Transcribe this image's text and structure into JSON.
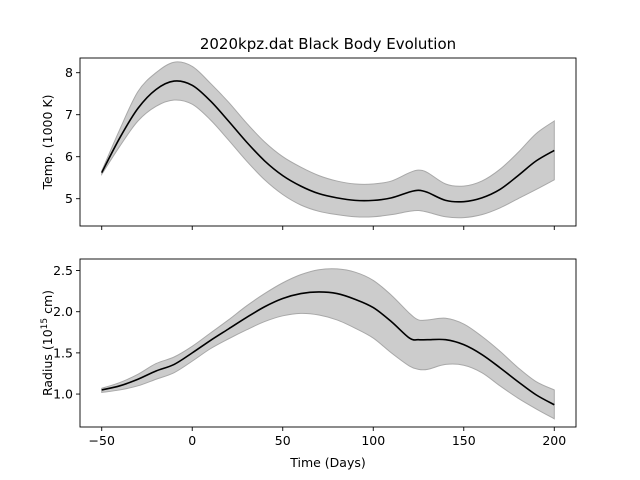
{
  "chart_data": [
    {
      "type": "line",
      "title": "2020kpz.dat Black Body Evolution",
      "xlabel": "",
      "ylabel": "Temp. (1000 K)",
      "xlim": [
        -62,
        212
      ],
      "ylim": [
        4.35,
        8.35
      ],
      "xticks": [
        -50,
        0,
        50,
        100,
        150,
        200
      ],
      "xtick_labels_shown": false,
      "yticks": [
        5,
        6,
        7,
        8
      ],
      "grid": false,
      "colors": {
        "line": "#000000",
        "band": "#cccccc",
        "band_edge": "#a8a8a8"
      },
      "series": [
        {
          "x": [
            -50,
            -40,
            -30,
            -20,
            -10,
            0,
            10,
            20,
            30,
            40,
            50,
            60,
            70,
            80,
            90,
            100,
            110,
            120,
            125,
            130,
            140,
            150,
            160,
            170,
            180,
            190,
            200
          ],
          "y": [
            5.62,
            6.45,
            7.15,
            7.6,
            7.8,
            7.7,
            7.33,
            6.85,
            6.35,
            5.9,
            5.55,
            5.3,
            5.12,
            5.02,
            4.96,
            4.96,
            5.02,
            5.16,
            5.2,
            5.15,
            4.96,
            4.93,
            5.02,
            5.22,
            5.55,
            5.9,
            6.15
          ],
          "lower": [
            5.58,
            6.25,
            6.85,
            7.2,
            7.35,
            7.25,
            6.88,
            6.4,
            5.9,
            5.45,
            5.1,
            4.85,
            4.7,
            4.62,
            4.57,
            4.57,
            4.62,
            4.7,
            4.72,
            4.68,
            4.57,
            4.55,
            4.62,
            4.78,
            5.0,
            5.22,
            5.45
          ],
          "upper": [
            5.66,
            6.65,
            7.55,
            8.0,
            8.25,
            8.15,
            7.75,
            7.3,
            6.8,
            6.35,
            6.0,
            5.75,
            5.55,
            5.42,
            5.35,
            5.35,
            5.42,
            5.62,
            5.68,
            5.62,
            5.35,
            5.3,
            5.42,
            5.7,
            6.1,
            6.55,
            6.85
          ]
        }
      ]
    },
    {
      "type": "line",
      "title": "",
      "xlabel": "Time (Days)",
      "ylabel": "Radius (10",
      "ylabel_exp": "15",
      "ylabel_tail": " cm)",
      "xlim": [
        -62,
        212
      ],
      "ylim": [
        0.6,
        2.64
      ],
      "xticks": [
        -50,
        0,
        50,
        100,
        150,
        200
      ],
      "xtick_labels": [
        "−50",
        "0",
        "50",
        "100",
        "150",
        "200"
      ],
      "yticks": [
        1.0,
        1.5,
        2.0,
        2.5
      ],
      "ytick_labels": [
        "1.0",
        "1.5",
        "2.0",
        "2.5"
      ],
      "grid": false,
      "colors": {
        "line": "#000000",
        "band": "#cccccc",
        "band_edge": "#a8a8a8"
      },
      "series": [
        {
          "x": [
            -50,
            -40,
            -30,
            -20,
            -10,
            0,
            10,
            20,
            30,
            40,
            50,
            60,
            70,
            80,
            90,
            100,
            110,
            120,
            125,
            130,
            140,
            150,
            160,
            170,
            180,
            190,
            200
          ],
          "y": [
            1.05,
            1.1,
            1.18,
            1.28,
            1.36,
            1.5,
            1.65,
            1.79,
            1.93,
            2.06,
            2.16,
            2.22,
            2.24,
            2.22,
            2.15,
            2.05,
            1.88,
            1.68,
            1.66,
            1.66,
            1.66,
            1.6,
            1.48,
            1.32,
            1.15,
            0.99,
            0.87
          ],
          "lower": [
            1.02,
            1.05,
            1.1,
            1.18,
            1.26,
            1.4,
            1.55,
            1.67,
            1.78,
            1.88,
            1.95,
            1.98,
            1.96,
            1.9,
            1.8,
            1.68,
            1.5,
            1.34,
            1.3,
            1.3,
            1.36,
            1.35,
            1.26,
            1.1,
            0.95,
            0.82,
            0.7
          ],
          "upper": [
            1.07,
            1.14,
            1.24,
            1.37,
            1.45,
            1.58,
            1.74,
            1.9,
            2.07,
            2.22,
            2.35,
            2.45,
            2.51,
            2.52,
            2.48,
            2.38,
            2.2,
            1.98,
            1.9,
            1.9,
            1.92,
            1.85,
            1.7,
            1.52,
            1.32,
            1.15,
            1.05
          ]
        }
      ]
    }
  ]
}
